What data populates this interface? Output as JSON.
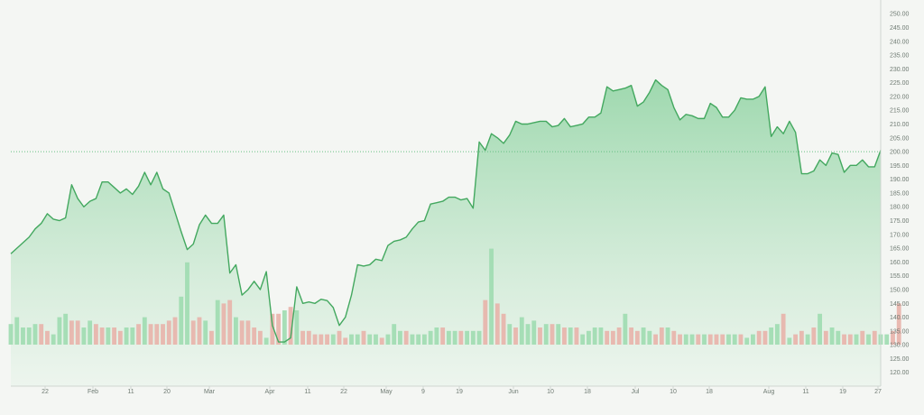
{
  "chart_data": {
    "type": "area",
    "title": "",
    "xlabel": "",
    "ylabel": "",
    "ylim": [
      115,
      253
    ],
    "y_ticks": [
      250,
      245,
      240,
      235,
      230,
      225,
      220,
      215,
      210,
      205,
      200,
      195,
      190,
      185,
      180,
      175,
      170,
      165,
      160,
      155,
      150,
      145,
      140,
      135,
      130,
      125,
      120
    ],
    "x_tick_labels": [
      "22",
      "Feb",
      "11",
      "20",
      "Mar",
      "Apr",
      "11",
      "22",
      "May",
      "9",
      "19",
      "Jun",
      "10",
      "18",
      "Jul",
      "10",
      "18",
      "Aug",
      "11",
      "19",
      "27"
    ],
    "reference_line": 200,
    "grid": false,
    "legend": "none",
    "series": [
      {
        "values": [
          163,
          165,
          167,
          169,
          172,
          174,
          177.5,
          175.5,
          175,
          176,
          188,
          183,
          180,
          182,
          183,
          189,
          189,
          187,
          185,
          186.5,
          184.5,
          187.5,
          192.5,
          188,
          192.5,
          186.5,
          185,
          178,
          171,
          164.5,
          166.5,
          173.5,
          177,
          174,
          174,
          177,
          156,
          159,
          148,
          150,
          153,
          150,
          156.5,
          137,
          131,
          131,
          132.5,
          151,
          145,
          145.5,
          145,
          146.5,
          146,
          143.5,
          137,
          140,
          148,
          159,
          158.5,
          159,
          161,
          160.5,
          166,
          167.5,
          168,
          169,
          172,
          174.5,
          175,
          181,
          181.5,
          182,
          183.5,
          183.5,
          182.5,
          183,
          179.5,
          203.5,
          200.5,
          206.5,
          205,
          203,
          206,
          211,
          210,
          210,
          210.5,
          211,
          211,
          209,
          209.5,
          212,
          209,
          209.5,
          210,
          212.5,
          212.5,
          214,
          223.5,
          222,
          222.5,
          223,
          224,
          216.5,
          218,
          221.5,
          226,
          224,
          222.5,
          216,
          211.5,
          213.5,
          213,
          212,
          212,
          217.5,
          216,
          212.5,
          212.5,
          215,
          219.5,
          219,
          219,
          220,
          223.5,
          205.5,
          209,
          206.5,
          211,
          207,
          192,
          192,
          193,
          197,
          195,
          199.5,
          199,
          192.5,
          195,
          195,
          197,
          194.5,
          194.5,
          200.5
        ]
      }
    ],
    "volume": [
      0.06,
      0.08,
      0.05,
      0.05,
      0.06,
      0.06,
      0.04,
      0.03,
      0.08,
      0.09,
      0.07,
      0.07,
      0.05,
      0.07,
      0.06,
      0.05,
      0.05,
      0.05,
      0.04,
      0.05,
      0.05,
      0.06,
      0.08,
      0.06,
      0.06,
      0.06,
      0.07,
      0.08,
      0.14,
      0.24,
      0.07,
      0.08,
      0.07,
      0.04,
      0.13,
      0.12,
      0.13,
      0.08,
      0.07,
      0.07,
      0.05,
      0.04,
      0.02,
      0.09,
      0.09,
      0.1,
      0.11,
      0.1,
      0.04,
      0.04,
      0.03,
      0.03,
      0.03,
      0.03,
      0.04,
      0.02,
      0.03,
      0.03,
      0.04,
      0.03,
      0.03,
      0.02,
      0.03,
      0.06,
      0.04,
      0.04,
      0.03,
      0.03,
      0.03,
      0.04,
      0.05,
      0.05,
      0.04,
      0.04,
      0.04,
      0.04,
      0.04,
      0.04,
      0.13,
      0.28,
      0.12,
      0.09,
      0.06,
      0.05,
      0.08,
      0.06,
      0.07,
      0.05,
      0.06,
      0.06,
      0.06,
      0.05,
      0.05,
      0.05,
      0.03,
      0.04,
      0.05,
      0.05,
      0.04,
      0.04,
      0.05,
      0.09,
      0.05,
      0.04,
      0.05,
      0.04,
      0.03,
      0.05,
      0.05,
      0.04,
      0.03,
      0.03,
      0.03,
      0.03,
      0.03,
      0.03,
      0.03,
      0.03,
      0.03,
      0.03,
      0.03,
      0.02,
      0.03,
      0.04,
      0.04,
      0.05,
      0.06,
      0.09,
      0.02,
      0.03,
      0.04,
      0.03,
      0.05,
      0.09,
      0.04,
      0.05,
      0.04,
      0.03,
      0.03,
      0.03,
      0.04,
      0.03,
      0.04,
      0.03,
      0.03,
      0.04,
      0.12
    ],
    "volume_up": [
      1,
      1,
      1,
      1,
      1,
      0,
      0,
      1,
      1,
      1,
      0,
      0,
      1,
      1,
      0,
      0,
      1,
      0,
      0,
      1,
      1,
      0,
      1,
      0,
      0,
      0,
      0,
      0,
      1,
      1,
      0,
      0,
      1,
      0,
      1,
      0,
      0,
      1,
      0,
      0,
      0,
      0,
      1,
      0,
      0,
      1,
      0,
      1,
      0,
      0,
      0,
      0,
      0,
      1,
      0,
      0,
      1,
      1,
      0,
      1,
      1,
      0,
      1,
      1,
      1,
      0,
      1,
      1,
      1,
      1,
      1,
      0,
      1,
      1,
      0,
      1,
      1,
      1,
      0,
      1,
      0,
      0,
      1,
      0,
      1,
      1,
      1,
      0,
      1,
      0,
      1,
      0,
      1,
      0,
      1,
      1,
      1,
      1,
      0,
      0,
      0,
      1,
      0,
      0,
      1,
      1,
      0,
      0,
      1,
      0,
      0,
      1,
      1,
      0,
      1,
      0,
      0,
      0,
      1,
      1,
      0,
      1,
      1,
      0,
      0,
      1,
      1,
      0,
      1,
      0,
      0,
      1,
      0,
      1,
      0,
      1,
      1,
      0,
      0,
      1,
      0,
      1,
      0,
      1,
      1
    ],
    "colors": {
      "line": "#43a85f",
      "area_top": "#8fd3a2",
      "area_bottom": "#e8f4ea",
      "vol_up": "#9fdbb0",
      "vol_down": "#e8b3aa",
      "reference": "#66c083",
      "axis_text": "#6e7a72",
      "axis_line": "#cfd6d1"
    }
  }
}
